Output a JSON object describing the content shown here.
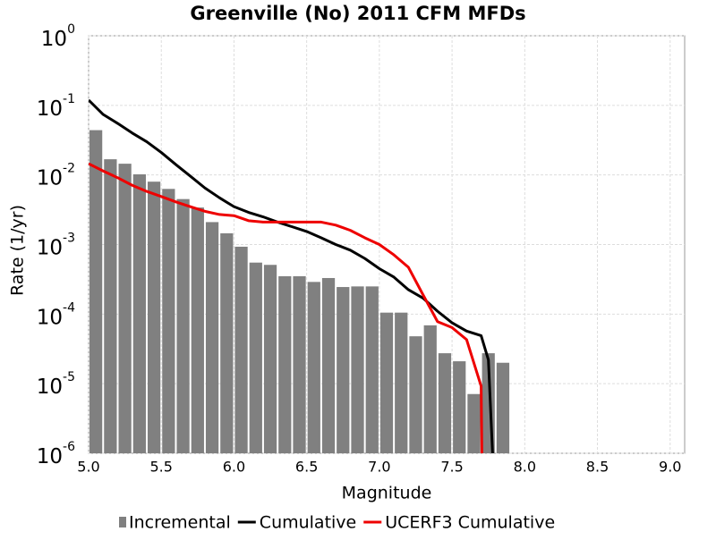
{
  "chart_data": {
    "type": "combo",
    "title": "Greenville (No) 2011 CFM MFDs",
    "x_label": "Magnitude",
    "y_label": "Rate (1/yr)",
    "yscale": "log",
    "grid": true,
    "legend": "bottom",
    "xlim": [
      5.0,
      9.1
    ],
    "ylim": [
      1e-06,
      1
    ],
    "xticks": [
      {
        "value": 5,
        "label": "5.0"
      },
      5.5,
      {
        "value": 6,
        "label": "6.0"
      },
      6.5,
      {
        "value": 7,
        "label": "7.0"
      },
      7.5,
      {
        "value": 8,
        "label": "8.0"
      },
      8.5,
      {
        "value": 9,
        "label": "9.0"
      }
    ],
    "yticks": [
      {
        "value": 1e-06,
        "label": "10",
        "sup": "-6"
      },
      {
        "value": 1e-05,
        "label": "10",
        "sup": "-5"
      },
      {
        "value": 0.0001,
        "label": "10",
        "sup": "-4"
      },
      {
        "value": 0.001,
        "label": "10",
        "sup": "-3"
      },
      {
        "value": 0.01,
        "label": "10",
        "sup": "-2"
      },
      {
        "value": 0.1,
        "label": "10",
        "sup": "-1"
      },
      {
        "value": 1,
        "label": "10",
        "sup": "0"
      }
    ],
    "series": [
      {
        "name": "Incremental",
        "type": "histogram",
        "color": "#808080",
        "bins": [
          5.0,
          5.1,
          5.2,
          5.3,
          5.4,
          5.5,
          5.6,
          5.7,
          5.8,
          5.9,
          6.0,
          6.1,
          6.2,
          6.3,
          6.4,
          6.5,
          6.6,
          6.7,
          6.8,
          6.9,
          7.0,
          7.1,
          7.2,
          7.3,
          7.4,
          7.5,
          7.6,
          7.7,
          7.8,
          7.9
        ],
        "values": [
          0.044,
          0.0168,
          0.0145,
          0.0102,
          0.008,
          0.0063,
          0.0045,
          0.0034,
          0.0021,
          0.00145,
          0.00093,
          0.00055,
          0.00051,
          0.00035,
          0.00035,
          0.00029,
          0.00033,
          0.000245,
          0.00025,
          0.00025,
          0.000105,
          0.000105,
          4.8e-05,
          6.9e-05,
          2.74e-05,
          2.1e-05,
          7.1e-06,
          2.74e-05,
          2e-05
        ]
      },
      {
        "name": "Cumulative",
        "type": "line",
        "color": "#000000",
        "x": [
          5.0,
          5.1,
          5.2,
          5.3,
          5.4,
          5.5,
          5.6,
          5.7,
          5.8,
          5.9,
          6.0,
          6.1,
          6.2,
          6.3,
          6.4,
          6.5,
          6.6,
          6.7,
          6.8,
          6.9,
          7.0,
          7.1,
          7.2,
          7.3,
          7.4,
          7.5,
          7.6,
          7.7,
          7.75,
          7.8
        ],
        "values": [
          0.119,
          0.074,
          0.055,
          0.04,
          0.03,
          0.021,
          0.0141,
          0.0096,
          0.0065,
          0.0047,
          0.0035,
          0.0029,
          0.0025,
          0.0021,
          0.0018,
          0.00154,
          0.00125,
          0.001,
          0.00083,
          0.00063,
          0.00045,
          0.00034,
          0.000224,
          0.00017,
          0.00011,
          7.5e-05,
          5.7e-05,
          4.9e-05,
          2.2e-05,
          1e-07
        ]
      },
      {
        "name": "UCERF3 Cumulative",
        "type": "line",
        "color": "#ee0000",
        "x": [
          5.0,
          5.1,
          5.2,
          5.3,
          5.4,
          5.5,
          5.6,
          5.7,
          5.8,
          5.9,
          6.0,
          6.1,
          6.2,
          6.3,
          6.4,
          6.5,
          6.6,
          6.7,
          6.8,
          6.9,
          7.0,
          7.1,
          7.2,
          7.3,
          7.4,
          7.5,
          7.6,
          7.7,
          7.71
        ],
        "values": [
          0.0145,
          0.0114,
          0.0091,
          0.0071,
          0.0058,
          0.0049,
          0.0041,
          0.0035,
          0.003,
          0.0027,
          0.0026,
          0.0022,
          0.0021,
          0.0021,
          0.0021,
          0.0021,
          0.0021,
          0.0019,
          0.0016,
          0.00125,
          0.001,
          0.00071,
          0.00047,
          0.00019,
          7.8e-05,
          6.4e-05,
          4.3e-05,
          9.2e-06,
          1e-07
        ]
      }
    ]
  }
}
